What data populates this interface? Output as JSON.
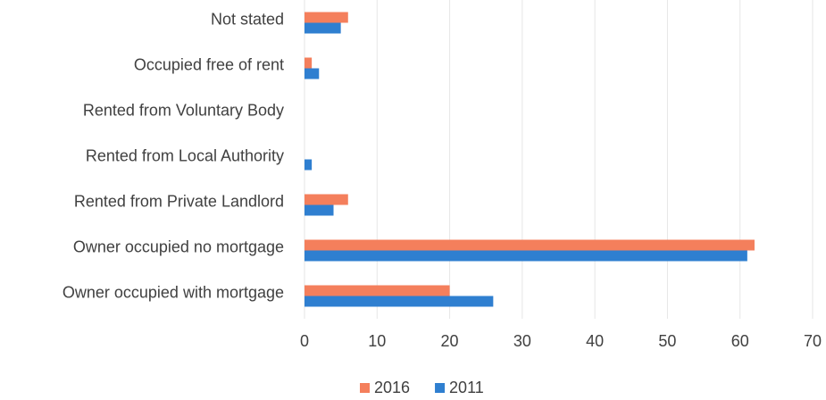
{
  "chart_data": {
    "type": "bar",
    "orientation": "horizontal",
    "categories": [
      "Not stated",
      "Occupied free of rent",
      "Rented from Voluntary Body",
      "Rented from Local Authority",
      "Rented from Private Landlord",
      "Owner occupied no mortgage",
      "Owner occupied with mortgage"
    ],
    "series": [
      {
        "name": "2016",
        "color": "#f47f5c",
        "values": [
          6,
          1,
          0,
          0,
          6,
          62,
          20
        ]
      },
      {
        "name": "2011",
        "color": "#2f7fd0",
        "values": [
          5,
          2,
          0,
          1,
          4,
          61,
          26
        ]
      }
    ],
    "xlim": [
      0,
      70
    ],
    "xticks": [
      0,
      10,
      20,
      30,
      40,
      50,
      60,
      70
    ],
    "grid": true,
    "legend": "bottom"
  }
}
